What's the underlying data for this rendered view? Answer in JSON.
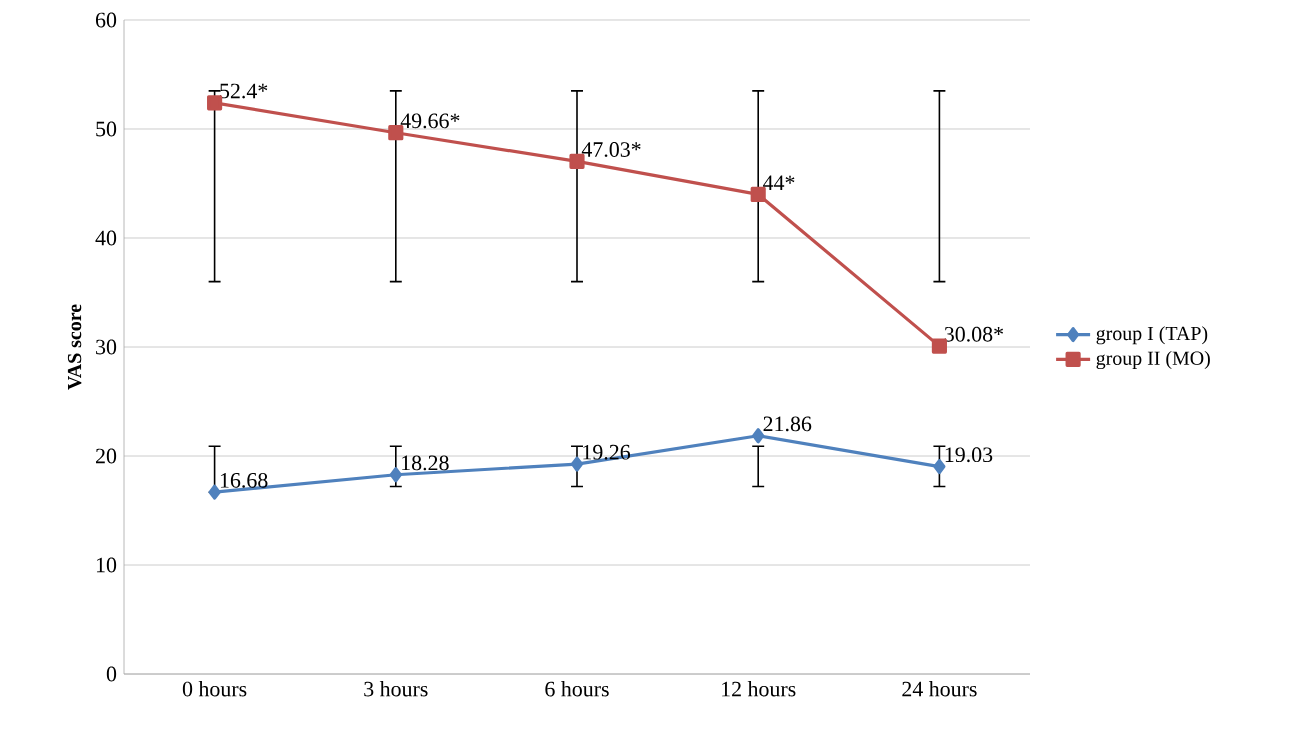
{
  "chart_data": {
    "type": "line",
    "ylabel": "VAS score",
    "categories": [
      "0 hours",
      "3 hours",
      "6 hours",
      "12 hours",
      "24 hours"
    ],
    "series": [
      {
        "name": "group I (TAP)",
        "color": "#4f81bd",
        "marker": "diamond",
        "values": [
          16.68,
          18.28,
          19.26,
          21.86,
          19.03
        ],
        "value_labels": [
          "16.68",
          "18.28",
          "19.26",
          "21.86",
          "19.03"
        ],
        "errors": [
          [
            16.68,
            20.9
          ],
          [
            17.2,
            20.9
          ],
          [
            17.2,
            20.9
          ],
          [
            17.2,
            20.9
          ],
          [
            17.2,
            20.9
          ]
        ]
      },
      {
        "name": "group II (MO)",
        "color": "#c0504d",
        "marker": "square",
        "values": [
          52.4,
          49.66,
          47.03,
          44,
          30.08
        ],
        "value_labels": [
          "52.4*",
          "49.66*",
          "47.03*",
          "44*",
          "30.08*"
        ],
        "errors": [
          [
            36,
            53.5
          ],
          [
            36,
            53.5
          ],
          [
            36,
            53.5
          ],
          [
            36,
            53.5
          ],
          [
            36,
            53.5
          ]
        ]
      }
    ],
    "ylim": [
      0,
      60
    ],
    "yticks": [
      0,
      10,
      20,
      30,
      40,
      50,
      60
    ],
    "grid": "y",
    "legend": "right"
  }
}
